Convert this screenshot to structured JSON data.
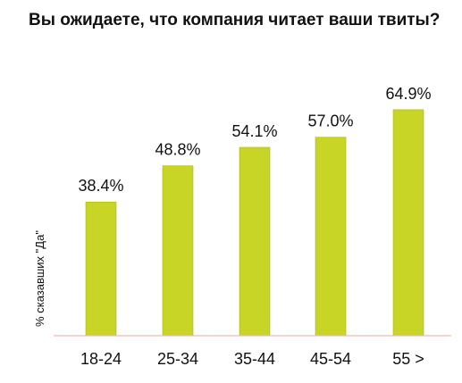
{
  "chart_data": {
    "type": "bar",
    "title": "Вы ожидаете, что компания читает ваши твиты?",
    "xlabel": "",
    "ylabel": "% сказавших \"Да\"",
    "categories": [
      "18-24",
      "25-34",
      "35-44",
      "45-54",
      "55 >"
    ],
    "values": [
      38.4,
      48.8,
      54.1,
      57.0,
      64.9
    ],
    "data_labels": [
      "38.4%",
      "48.8%",
      "54.1%",
      "57.0%",
      "64.9%"
    ],
    "ylim": [
      0,
      70
    ],
    "grid": false,
    "legend": "none",
    "colors": {
      "bar_fill": "#c8d426",
      "bar_stroke": "#a9b81c",
      "baseline": "#f2b8b0",
      "text": "#111111"
    }
  }
}
